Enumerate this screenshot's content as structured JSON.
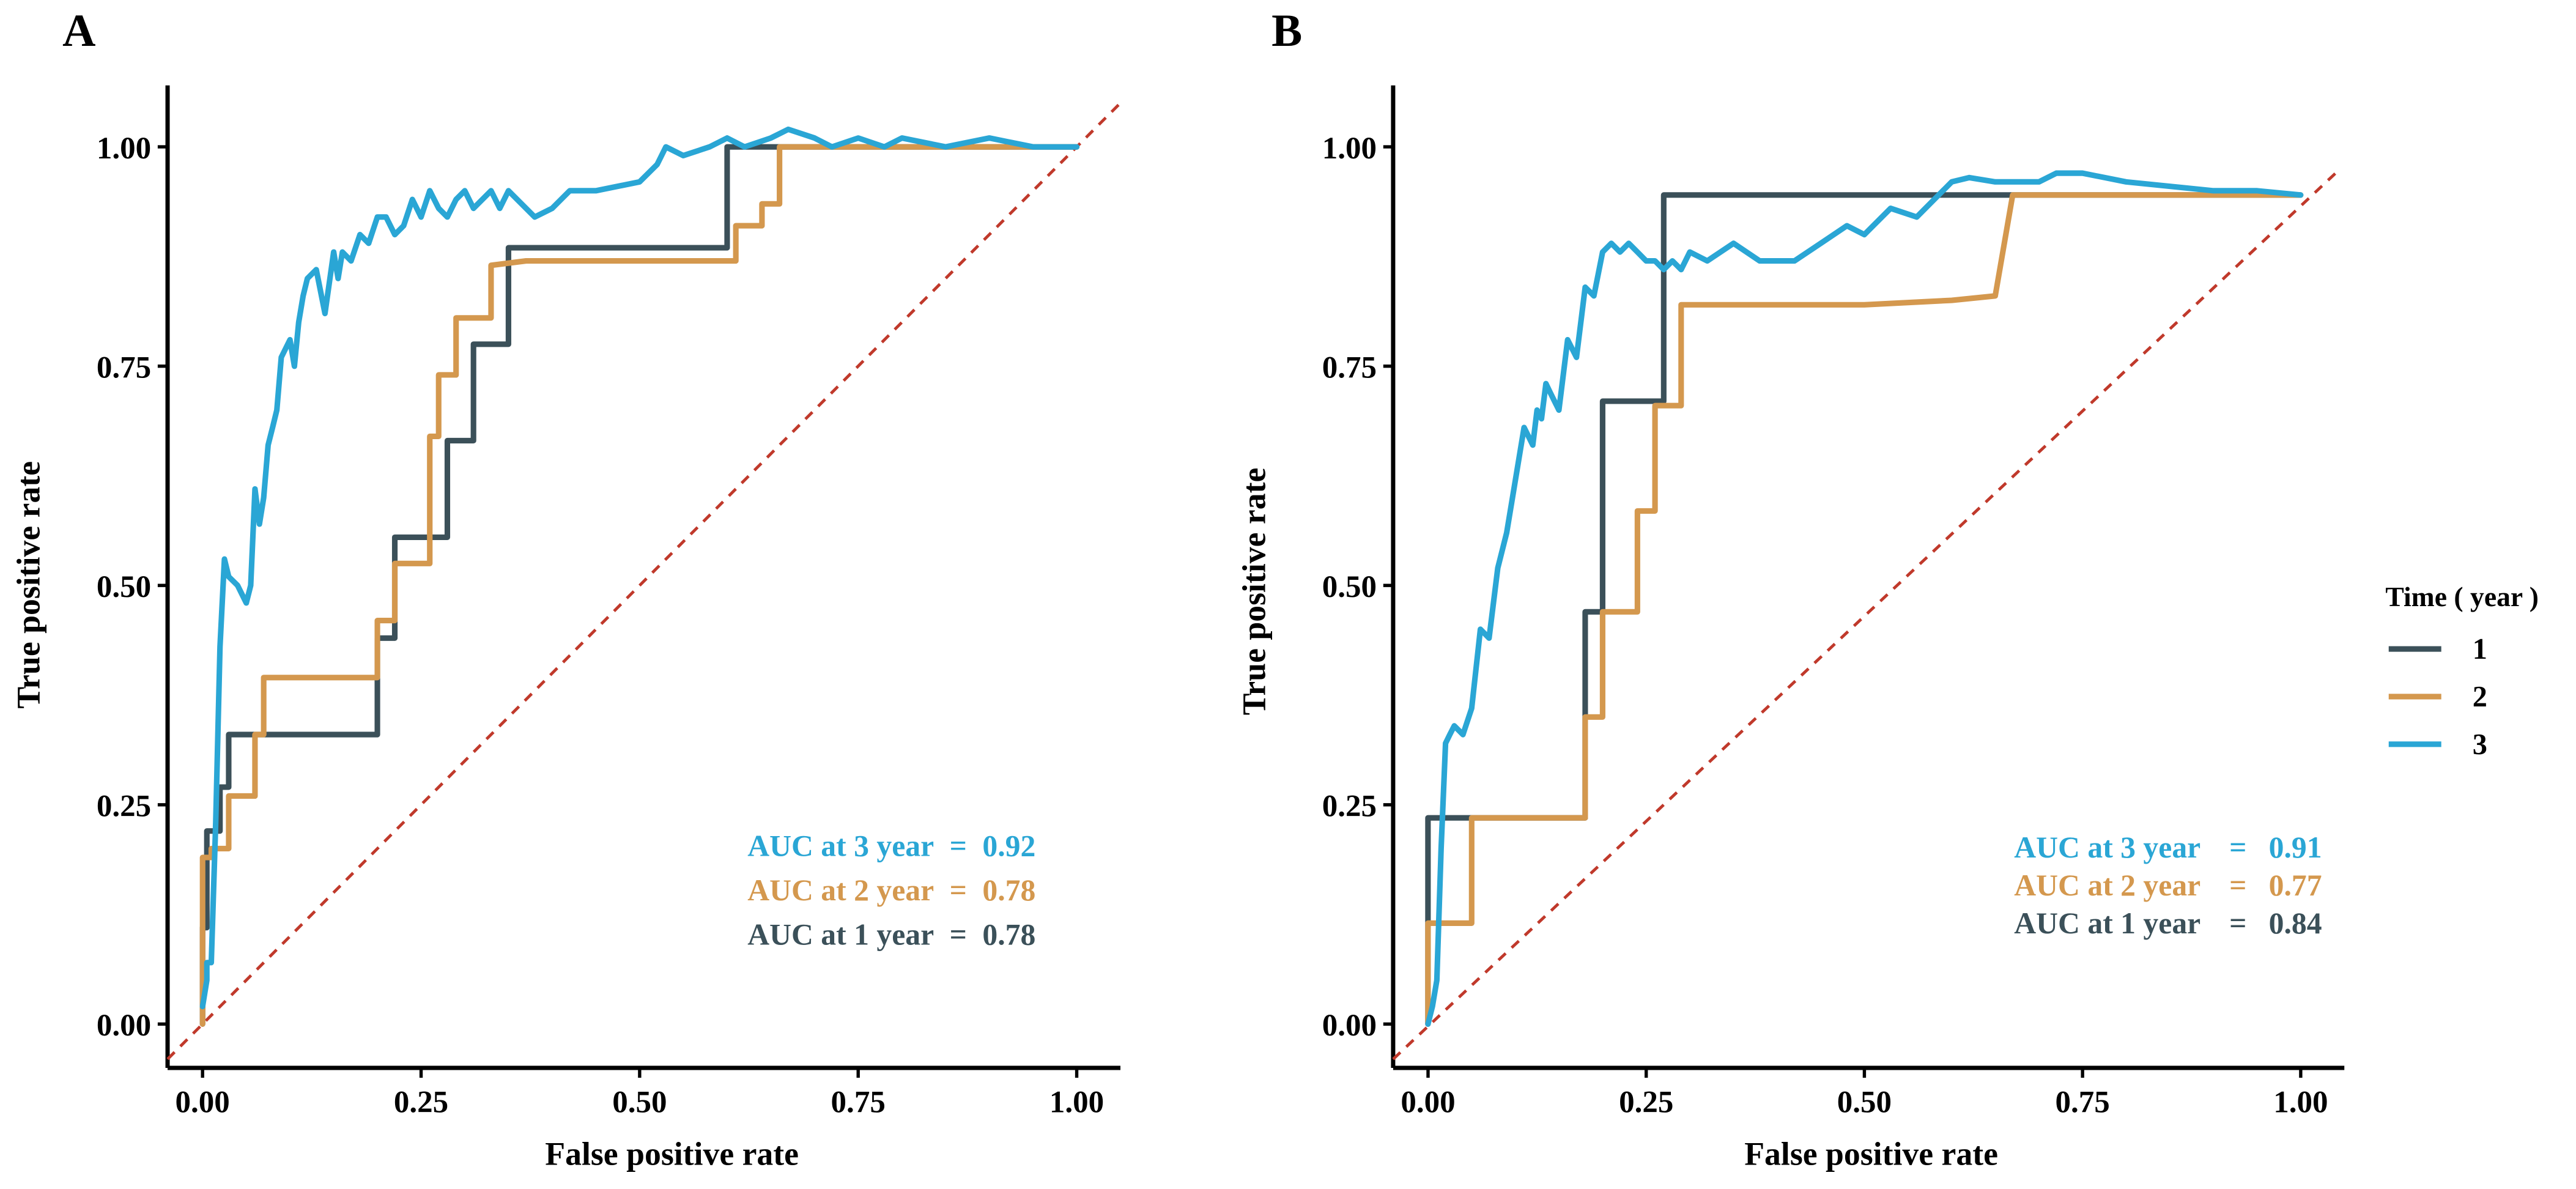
{
  "figure": {
    "legend": {
      "title": "Time ( year )",
      "items": [
        {
          "label": "1",
          "series": "year1"
        },
        {
          "label": "2",
          "series": "year2"
        },
        {
          "label": "3",
          "series": "year3"
        }
      ]
    }
  },
  "colors": {
    "year1": "#3b5059",
    "year2": "#d4984e",
    "year3": "#2aa6d5",
    "diagonal": "#c0392b"
  },
  "chart_data": [
    {
      "panel": "A",
      "type": "line",
      "xlabel": "False positive rate",
      "ylabel": "True positive rate",
      "xlim": [
        -0.04,
        1.05
      ],
      "ylim": [
        -0.05,
        1.07
      ],
      "xticks": [
        0,
        0.25,
        0.5,
        0.75,
        1
      ],
      "yticks": [
        0,
        0.25,
        0.5,
        0.75,
        1
      ],
      "xtick_labels": [
        "0.00",
        "0.25",
        "0.50",
        "0.75",
        "1.00"
      ],
      "ytick_labels": [
        "0.00",
        "0.25",
        "0.50",
        "0.75",
        "1.00"
      ],
      "diagonal": {
        "x": [
          -0.04,
          1.05
        ],
        "y": [
          -0.04,
          1.05
        ]
      },
      "auc_labels": [
        {
          "series": "year3",
          "prefix": "AUC at 3 year",
          "eq": "=",
          "value": "0.92"
        },
        {
          "series": "year2",
          "prefix": "AUC at 2 year",
          "eq": "=",
          "value": "0.78"
        },
        {
          "series": "year1",
          "prefix": "AUC at 1 year",
          "eq": "=",
          "value": "0.78"
        }
      ],
      "series": [
        {
          "key": "year1",
          "name": "1",
          "x": [
            0,
            0,
            0.005,
            0.005,
            0.02,
            0.02,
            0.03,
            0.03,
            0.2,
            0.2,
            0.22,
            0.22,
            0.28,
            0.28,
            0.31,
            0.31,
            0.35,
            0.35,
            0.6,
            0.6,
            1
          ],
          "y": [
            0,
            0.11,
            0.11,
            0.22,
            0.22,
            0.27,
            0.27,
            0.33,
            0.33,
            0.44,
            0.44,
            0.555,
            0.555,
            0.665,
            0.665,
            0.775,
            0.775,
            0.885,
            0.885,
            1,
            1
          ]
        },
        {
          "key": "year2",
          "name": "2",
          "x": [
            0,
            0,
            0.01,
            0.01,
            0.03,
            0.03,
            0.04,
            0.04,
            0.06,
            0.06,
            0.07,
            0.07,
            0.15,
            0.2,
            0.2,
            0.22,
            0.22,
            0.26,
            0.26,
            0.27,
            0.27,
            0.29,
            0.29,
            0.33,
            0.33,
            0.37,
            0.6,
            0.61,
            0.61,
            0.64,
            0.64,
            0.66,
            0.66,
            1
          ],
          "y": [
            0,
            0.19,
            0.19,
            0.2,
            0.2,
            0.26,
            0.26,
            0.26,
            0.26,
            0.33,
            0.33,
            0.395,
            0.395,
            0.395,
            0.46,
            0.46,
            0.525,
            0.525,
            0.67,
            0.67,
            0.74,
            0.74,
            0.805,
            0.805,
            0.865,
            0.87,
            0.87,
            0.87,
            0.91,
            0.91,
            0.935,
            0.935,
            1,
            1
          ]
        },
        {
          "key": "year3",
          "name": "3",
          "x": [
            0,
            0.005,
            0.005,
            0.01,
            0.015,
            0.02,
            0.025,
            0.03,
            0.04,
            0.05,
            0.055,
            0.06,
            0.065,
            0.07,
            0.075,
            0.08,
            0.085,
            0.09,
            0.1,
            0.105,
            0.11,
            0.115,
            0.12,
            0.13,
            0.14,
            0.15,
            0.155,
            0.16,
            0.17,
            0.18,
            0.19,
            0.2,
            0.21,
            0.22,
            0.23,
            0.24,
            0.25,
            0.26,
            0.27,
            0.28,
            0.29,
            0.3,
            0.31,
            0.32,
            0.33,
            0.34,
            0.35,
            0.36,
            0.38,
            0.4,
            0.42,
            0.45,
            0.5,
            0.52,
            0.53,
            0.55,
            0.58,
            0.6,
            0.62,
            0.65,
            0.67,
            0.7,
            0.72,
            0.75,
            0.78,
            0.8,
            0.85,
            0.9,
            0.95,
            1
          ],
          "y": [
            0.02,
            0.05,
            0.07,
            0.07,
            0.23,
            0.43,
            0.53,
            0.51,
            0.5,
            0.48,
            0.5,
            0.61,
            0.57,
            0.6,
            0.66,
            0.68,
            0.7,
            0.76,
            0.78,
            0.75,
            0.8,
            0.83,
            0.85,
            0.86,
            0.81,
            0.88,
            0.85,
            0.88,
            0.87,
            0.9,
            0.89,
            0.92,
            0.92,
            0.9,
            0.91,
            0.94,
            0.92,
            0.95,
            0.93,
            0.92,
            0.94,
            0.95,
            0.93,
            0.94,
            0.95,
            0.93,
            0.95,
            0.94,
            0.92,
            0.93,
            0.95,
            0.95,
            0.96,
            0.98,
            1,
            0.99,
            1,
            1.01,
            1,
            1.01,
            1.02,
            1.01,
            1,
            1.01,
            1,
            1.01,
            1,
            1.01,
            1,
            1
          ]
        }
      ]
    },
    {
      "panel": "B",
      "type": "line",
      "xlabel": "False positive rate",
      "ylabel": "True positive rate",
      "xlim": [
        -0.04,
        1.05
      ],
      "ylim": [
        -0.05,
        1.07
      ],
      "xticks": [
        0,
        0.25,
        0.5,
        0.75,
        1
      ],
      "yticks": [
        0,
        0.25,
        0.5,
        0.75,
        1
      ],
      "xtick_labels": [
        "0.00",
        "0.25",
        "0.50",
        "0.75",
        "1.00"
      ],
      "ytick_labels": [
        "0.00",
        "0.25",
        "0.50",
        "0.75",
        "1.00"
      ],
      "diagonal": {
        "x": [
          -0.04,
          1.04
        ],
        "y": [
          -0.04,
          0.97
        ]
      },
      "auc_labels": [
        {
          "series": "year3",
          "prefix": "AUC at 3 year",
          "eq": "=",
          "value": "0.91"
        },
        {
          "series": "year2",
          "prefix": "AUC at 2 year",
          "eq": "=",
          "value": "0.77"
        },
        {
          "series": "year1",
          "prefix": "AUC at 1 year",
          "eq": "=",
          "value": "0.84"
        }
      ],
      "series": [
        {
          "key": "year1",
          "name": "1",
          "x": [
            0,
            0,
            0.01,
            0.01,
            0.18,
            0.18,
            0.2,
            0.2,
            0.27,
            0.27,
            1
          ],
          "y": [
            0,
            0.235,
            0.235,
            0.235,
            0.235,
            0.47,
            0.47,
            0.71,
            0.71,
            0.945,
            0.945
          ]
        },
        {
          "key": "year2",
          "name": "2",
          "x": [
            0,
            0,
            0.05,
            0.05,
            0.18,
            0.18,
            0.2,
            0.2,
            0.24,
            0.24,
            0.26,
            0.26,
            0.29,
            0.29,
            0.33,
            0.5,
            0.6,
            0.65,
            0.67,
            1
          ],
          "y": [
            0,
            0.115,
            0.115,
            0.235,
            0.235,
            0.35,
            0.35,
            0.47,
            0.47,
            0.585,
            0.585,
            0.705,
            0.705,
            0.82,
            0.82,
            0.82,
            0.825,
            0.83,
            0.945,
            0.945
          ]
        },
        {
          "key": "year3",
          "name": "3",
          "x": [
            0,
            0.005,
            0.01,
            0.015,
            0.02,
            0.025,
            0.03,
            0.04,
            0.05,
            0.06,
            0.07,
            0.08,
            0.09,
            0.1,
            0.11,
            0.12,
            0.125,
            0.13,
            0.135,
            0.14,
            0.15,
            0.16,
            0.17,
            0.18,
            0.19,
            0.2,
            0.21,
            0.22,
            0.23,
            0.24,
            0.25,
            0.26,
            0.27,
            0.28,
            0.29,
            0.3,
            0.32,
            0.35,
            0.38,
            0.42,
            0.45,
            0.48,
            0.5,
            0.53,
            0.56,
            0.6,
            0.62,
            0.65,
            0.7,
            0.72,
            0.75,
            0.8,
            0.85,
            0.9,
            0.95,
            1
          ],
          "y": [
            0,
            0.02,
            0.05,
            0.2,
            0.32,
            0.33,
            0.34,
            0.33,
            0.36,
            0.45,
            0.44,
            0.52,
            0.56,
            0.62,
            0.68,
            0.66,
            0.7,
            0.69,
            0.73,
            0.72,
            0.7,
            0.78,
            0.76,
            0.84,
            0.83,
            0.88,
            0.89,
            0.88,
            0.89,
            0.88,
            0.87,
            0.87,
            0.86,
            0.87,
            0.86,
            0.88,
            0.87,
            0.89,
            0.87,
            0.87,
            0.89,
            0.91,
            0.9,
            0.93,
            0.92,
            0.96,
            0.965,
            0.96,
            0.96,
            0.97,
            0.97,
            0.96,
            0.955,
            0.95,
            0.95,
            0.945
          ]
        }
      ]
    }
  ]
}
